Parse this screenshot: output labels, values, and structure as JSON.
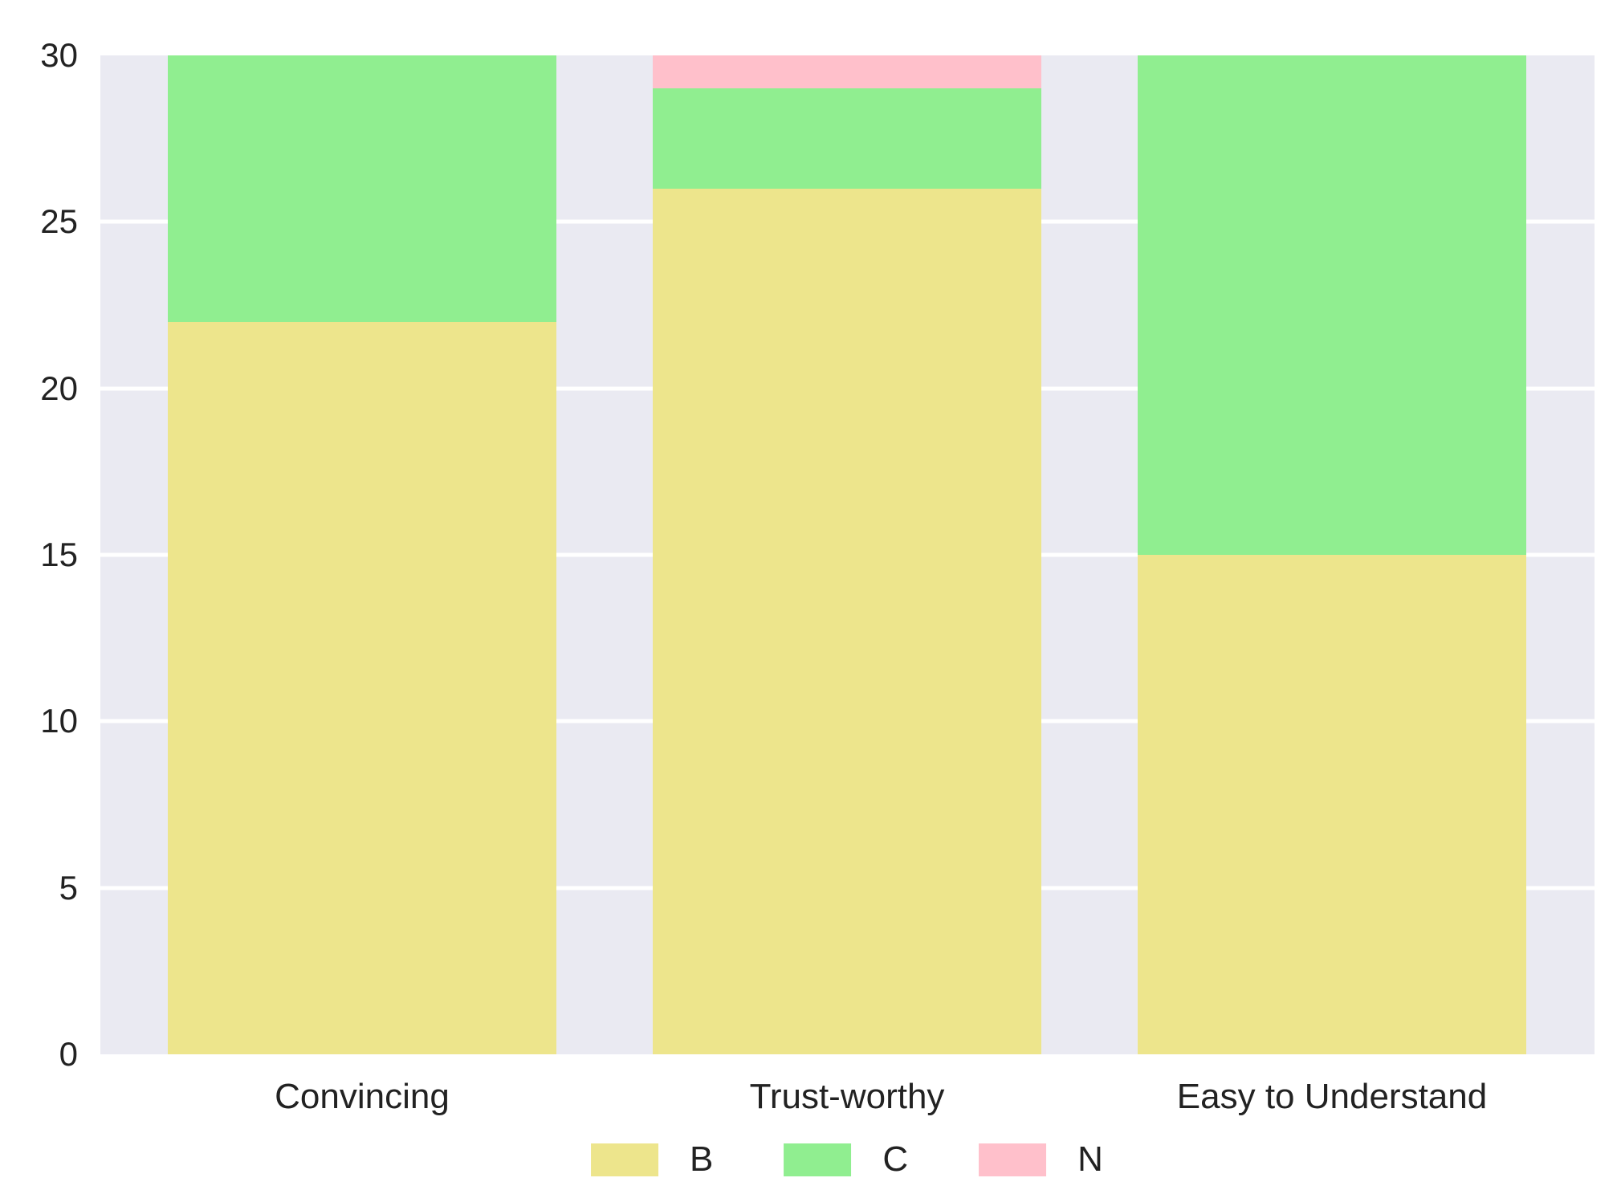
{
  "chart_data": {
    "type": "bar",
    "stacked": true,
    "title": "",
    "xlabel": "",
    "ylabel": "",
    "categories": [
      "Convincing",
      "Trust-worthy",
      "Easy to Understand"
    ],
    "series": [
      {
        "name": "B",
        "color": "#EDE58C",
        "values": [
          22,
          26,
          15
        ]
      },
      {
        "name": "C",
        "color": "#90EE90",
        "values": [
          8,
          3,
          15
        ]
      },
      {
        "name": "N",
        "color": "#FFC0CB",
        "values": [
          0,
          1,
          0
        ]
      }
    ],
    "ylim": [
      0,
      30
    ],
    "yticks": [
      0,
      5,
      10,
      15,
      20,
      25,
      30
    ],
    "grid": "horizontal-major",
    "legend_position": "bottom-center",
    "colors": {
      "plot_background": "#EAEAF2",
      "gridline": "#FFFFFF",
      "text": "#222222",
      "page_background": "#FFFFFF"
    }
  }
}
